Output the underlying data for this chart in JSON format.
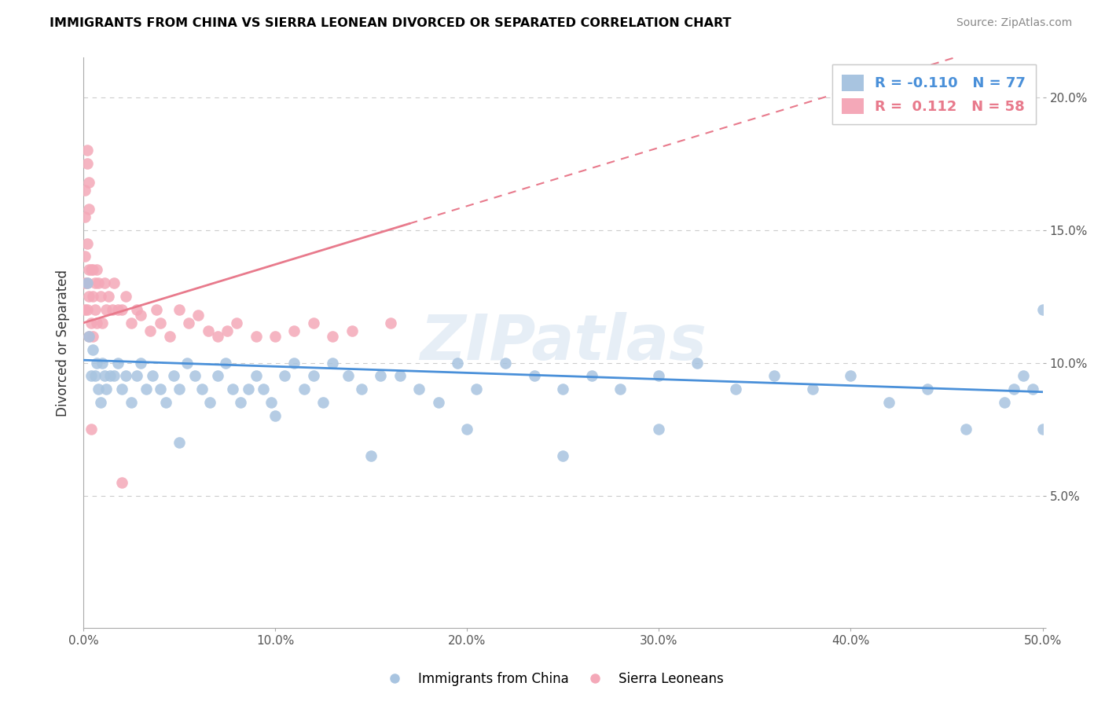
{
  "title": "IMMIGRANTS FROM CHINA VS SIERRA LEONEAN DIVORCED OR SEPARATED CORRELATION CHART",
  "source": "Source: ZipAtlas.com",
  "ylabel": "Divorced or Separated",
  "xlim": [
    0.0,
    0.5
  ],
  "ylim": [
    0.0,
    0.215
  ],
  "xticks": [
    0.0,
    0.1,
    0.2,
    0.3,
    0.4,
    0.5
  ],
  "yticks": [
    0.0,
    0.05,
    0.1,
    0.15,
    0.2
  ],
  "xticklabels": [
    "0.0%",
    "10.0%",
    "20.0%",
    "30.0%",
    "40.0%",
    "50.0%"
  ],
  "yticklabels": [
    "",
    "5.0%",
    "10.0%",
    "15.0%",
    "20.0%"
  ],
  "blue_color": "#a8c4e0",
  "pink_color": "#f4a8b8",
  "blue_line_color": "#4a90d9",
  "pink_line_color": "#e87a8c",
  "watermark": "ZIPatlas",
  "legend_series1": "Immigrants from China",
  "legend_series2": "Sierra Leoneans",
  "grid_yticks": [
    0.05,
    0.1,
    0.15,
    0.2
  ],
  "figsize": [
    14.06,
    8.92
  ],
  "dpi": 100,
  "blue_x": [
    0.002,
    0.003,
    0.004,
    0.005,
    0.006,
    0.007,
    0.008,
    0.009,
    0.01,
    0.011,
    0.012,
    0.014,
    0.016,
    0.018,
    0.02,
    0.022,
    0.025,
    0.028,
    0.03,
    0.033,
    0.036,
    0.04,
    0.043,
    0.047,
    0.05,
    0.054,
    0.058,
    0.062,
    0.066,
    0.07,
    0.074,
    0.078,
    0.082,
    0.086,
    0.09,
    0.094,
    0.098,
    0.105,
    0.11,
    0.115,
    0.12,
    0.125,
    0.13,
    0.138,
    0.145,
    0.155,
    0.165,
    0.175,
    0.185,
    0.195,
    0.205,
    0.22,
    0.235,
    0.25,
    0.265,
    0.28,
    0.3,
    0.32,
    0.34,
    0.36,
    0.38,
    0.4,
    0.42,
    0.44,
    0.46,
    0.48,
    0.5,
    0.5,
    0.495,
    0.49,
    0.485,
    0.05,
    0.1,
    0.15,
    0.2,
    0.25,
    0.3
  ],
  "blue_y": [
    0.13,
    0.11,
    0.095,
    0.105,
    0.095,
    0.1,
    0.09,
    0.085,
    0.1,
    0.095,
    0.09,
    0.095,
    0.095,
    0.1,
    0.09,
    0.095,
    0.085,
    0.095,
    0.1,
    0.09,
    0.095,
    0.09,
    0.085,
    0.095,
    0.09,
    0.1,
    0.095,
    0.09,
    0.085,
    0.095,
    0.1,
    0.09,
    0.085,
    0.09,
    0.095,
    0.09,
    0.085,
    0.095,
    0.1,
    0.09,
    0.095,
    0.085,
    0.1,
    0.095,
    0.09,
    0.095,
    0.095,
    0.09,
    0.085,
    0.1,
    0.09,
    0.1,
    0.095,
    0.09,
    0.095,
    0.09,
    0.095,
    0.1,
    0.09,
    0.095,
    0.09,
    0.095,
    0.085,
    0.09,
    0.075,
    0.085,
    0.075,
    0.12,
    0.09,
    0.095,
    0.09,
    0.07,
    0.08,
    0.065,
    0.075,
    0.065,
    0.075
  ],
  "pink_x": [
    0.001,
    0.001,
    0.001,
    0.002,
    0.002,
    0.002,
    0.003,
    0.003,
    0.003,
    0.004,
    0.004,
    0.005,
    0.005,
    0.005,
    0.006,
    0.006,
    0.007,
    0.007,
    0.008,
    0.009,
    0.01,
    0.011,
    0.012,
    0.013,
    0.015,
    0.016,
    0.018,
    0.02,
    0.022,
    0.025,
    0.028,
    0.03,
    0.035,
    0.038,
    0.04,
    0.045,
    0.05,
    0.055,
    0.06,
    0.065,
    0.07,
    0.075,
    0.08,
    0.09,
    0.1,
    0.11,
    0.12,
    0.13,
    0.14,
    0.16,
    0.001,
    0.001,
    0.002,
    0.002,
    0.003,
    0.003,
    0.004,
    0.02
  ],
  "pink_y": [
    0.14,
    0.13,
    0.12,
    0.145,
    0.13,
    0.12,
    0.135,
    0.125,
    0.11,
    0.135,
    0.115,
    0.135,
    0.125,
    0.11,
    0.13,
    0.12,
    0.135,
    0.115,
    0.13,
    0.125,
    0.115,
    0.13,
    0.12,
    0.125,
    0.12,
    0.13,
    0.12,
    0.12,
    0.125,
    0.115,
    0.12,
    0.118,
    0.112,
    0.12,
    0.115,
    0.11,
    0.12,
    0.115,
    0.118,
    0.112,
    0.11,
    0.112,
    0.115,
    0.11,
    0.11,
    0.112,
    0.115,
    0.11,
    0.112,
    0.115,
    0.155,
    0.165,
    0.175,
    0.18,
    0.158,
    0.168,
    0.075,
    0.055
  ],
  "pink_trend_x0": 0.0,
  "pink_trend_x_solid_end": 0.17,
  "pink_trend_x_dash_end": 0.5,
  "pink_trend_y_at_0": 0.115,
  "pink_trend_slope": 0.22,
  "blue_trend_y_at_0": 0.101,
  "blue_trend_slope": -0.024
}
